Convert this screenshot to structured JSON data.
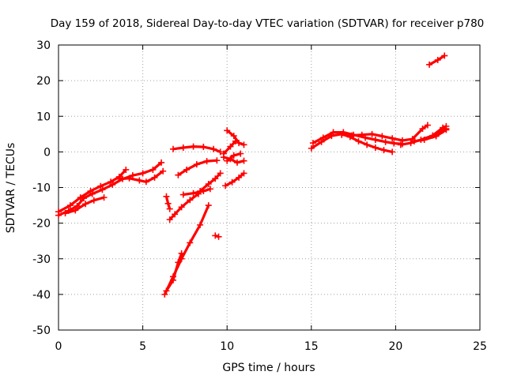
{
  "chart_data": {
    "type": "scatter",
    "title": "Day 159 of 2018, Sidereal Day-to-day VTEC variation (SDTVAR) for receiver p780",
    "xlabel": "GPS time / hours",
    "ylabel": "SDTVAR / TECUs",
    "xlim": [
      0,
      25
    ],
    "ylim": [
      -50,
      30
    ],
    "xticks": [
      0,
      5,
      10,
      15,
      20,
      25
    ],
    "yticks": [
      -50,
      -40,
      -30,
      -20,
      -10,
      0,
      10,
      20,
      30
    ],
    "grid": true,
    "legend": "none",
    "color": "#ff0000",
    "series": [
      {
        "points": [
          [
            0.0,
            -17.8
          ],
          [
            0.6,
            -16.5
          ],
          [
            1.1,
            -15.2
          ],
          [
            1.5,
            -13.0
          ],
          [
            2.0,
            -11.8
          ],
          [
            2.6,
            -10.6
          ],
          [
            3.2,
            -9.2
          ],
          [
            3.8,
            -7.6
          ],
          [
            4.4,
            -6.6
          ],
          [
            5.0,
            -6.0
          ],
          [
            5.6,
            -5.0
          ],
          [
            6.1,
            -3.0
          ]
        ]
      },
      {
        "points": [
          [
            0.0,
            -16.8
          ],
          [
            0.7,
            -15.0
          ],
          [
            1.3,
            -12.8
          ],
          [
            1.9,
            -11.0
          ],
          [
            2.5,
            -9.6
          ],
          [
            3.1,
            -8.4
          ],
          [
            3.6,
            -7.0
          ],
          [
            4.0,
            -5.0
          ]
        ]
      },
      {
        "points": [
          [
            0.4,
            -17.2
          ],
          [
            1.0,
            -16.4
          ],
          [
            1.6,
            -14.6
          ],
          [
            2.1,
            -13.6
          ],
          [
            2.7,
            -12.8
          ]
        ]
      },
      {
        "points": [
          [
            3.6,
            -7.6
          ],
          [
            4.2,
            -7.4
          ],
          [
            4.8,
            -8.0
          ],
          [
            5.2,
            -8.4
          ],
          [
            5.7,
            -7.2
          ],
          [
            6.2,
            -5.4
          ]
        ]
      },
      {
        "points": [
          [
            6.3,
            -40.0
          ],
          [
            6.8,
            -35.0
          ],
          [
            7.3,
            -30.0
          ],
          [
            7.8,
            -25.5
          ],
          [
            8.4,
            -20.5
          ],
          [
            8.9,
            -15.0
          ]
        ]
      },
      {
        "points": [
          [
            6.4,
            -39.0
          ],
          [
            6.8,
            -36.0
          ],
          [
            7.1,
            -31.0
          ],
          [
            7.3,
            -28.5
          ]
        ]
      },
      {
        "points": [
          [
            6.4,
            -12.5
          ],
          [
            6.5,
            -14.5
          ],
          [
            6.6,
            -16.0
          ]
        ]
      },
      {
        "points": [
          [
            6.6,
            -19.0
          ],
          [
            6.9,
            -17.5
          ],
          [
            7.3,
            -15.5
          ],
          [
            7.8,
            -13.5
          ],
          [
            8.3,
            -11.8
          ]
        ]
      },
      {
        "points": [
          [
            7.4,
            -12.0
          ],
          [
            8.0,
            -11.6
          ],
          [
            8.6,
            -11.0
          ],
          [
            9.0,
            -10.4
          ]
        ]
      },
      {
        "points": [
          [
            8.4,
            -11.0
          ],
          [
            8.9,
            -9.0
          ],
          [
            9.3,
            -7.5
          ],
          [
            9.6,
            -6.0
          ]
        ]
      },
      {
        "points": [
          [
            6.8,
            0.8
          ],
          [
            7.4,
            1.2
          ],
          [
            8.0,
            1.5
          ],
          [
            8.6,
            1.4
          ],
          [
            9.2,
            0.8
          ],
          [
            9.6,
            0.0
          ]
        ]
      },
      {
        "points": [
          [
            7.1,
            -6.5
          ],
          [
            7.6,
            -5.0
          ],
          [
            8.2,
            -3.5
          ],
          [
            8.8,
            -2.6
          ],
          [
            9.4,
            -2.4
          ]
        ]
      },
      {
        "points": [
          [
            9.3,
            -23.5
          ],
          [
            9.5,
            -23.8
          ]
        ]
      },
      {
        "points": [
          [
            9.9,
            -9.5
          ],
          [
            10.3,
            -8.5
          ],
          [
            10.7,
            -7.2
          ],
          [
            11.0,
            -6.0
          ]
        ]
      },
      {
        "points": [
          [
            9.8,
            -1.5
          ],
          [
            10.2,
            -2.0
          ],
          [
            10.6,
            -3.0
          ],
          [
            11.0,
            -2.5
          ]
        ]
      },
      {
        "points": [
          [
            10.0,
            6.0
          ],
          [
            10.4,
            4.5
          ],
          [
            10.7,
            2.5
          ],
          [
            11.0,
            2.0
          ]
        ]
      },
      {
        "points": [
          [
            9.8,
            -0.5
          ],
          [
            10.2,
            1.5
          ],
          [
            10.5,
            3.0
          ]
        ]
      },
      {
        "points": [
          [
            10.0,
            -2.5
          ],
          [
            10.4,
            -1.0
          ],
          [
            10.8,
            -0.5
          ]
        ]
      },
      {
        "points": [
          [
            15.0,
            1.0
          ],
          [
            15.6,
            2.8
          ],
          [
            16.2,
            4.5
          ],
          [
            16.8,
            5.0
          ],
          [
            17.3,
            4.2
          ],
          [
            17.8,
            3.0
          ],
          [
            18.3,
            2.0
          ],
          [
            18.8,
            1.2
          ],
          [
            19.3,
            0.5
          ],
          [
            19.8,
            0.0
          ]
        ]
      },
      {
        "points": [
          [
            15.1,
            2.5
          ],
          [
            15.7,
            4.0
          ],
          [
            16.3,
            5.5
          ],
          [
            16.9,
            5.5
          ],
          [
            17.5,
            4.8
          ],
          [
            18.2,
            4.0
          ],
          [
            18.8,
            3.4
          ],
          [
            19.4,
            2.8
          ],
          [
            19.9,
            2.4
          ],
          [
            20.4,
            2.2
          ]
        ]
      },
      {
        "points": [
          [
            16.8,
            4.8
          ],
          [
            17.4,
            4.6
          ],
          [
            18.0,
            4.8
          ],
          [
            18.6,
            5.0
          ],
          [
            19.2,
            4.4
          ],
          [
            19.8,
            3.8
          ],
          [
            20.4,
            3.2
          ],
          [
            21.0,
            3.6
          ],
          [
            21.6,
            6.5
          ],
          [
            21.9,
            7.5
          ]
        ]
      },
      {
        "points": [
          [
            20.3,
            2.0
          ],
          [
            20.9,
            2.5
          ],
          [
            21.5,
            3.4
          ],
          [
            22.2,
            4.6
          ],
          [
            22.8,
            6.8
          ],
          [
            23.0,
            7.2
          ]
        ]
      },
      {
        "points": [
          [
            22.4,
            4.8
          ],
          [
            22.8,
            6.0
          ],
          [
            23.0,
            6.5
          ]
        ]
      },
      {
        "points": [
          [
            21.1,
            3.0
          ],
          [
            21.7,
            3.4
          ],
          [
            22.4,
            4.4
          ],
          [
            23.0,
            6.2
          ]
        ]
      },
      {
        "points": [
          [
            22.0,
            24.5
          ],
          [
            22.5,
            25.8
          ],
          [
            22.9,
            27.0
          ]
        ]
      }
    ]
  }
}
